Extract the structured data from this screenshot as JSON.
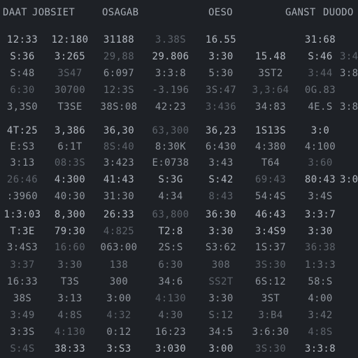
{
  "header": {
    "columns": [
      "DAAT",
      "JOBSIET",
      "OSAGAB",
      "",
      "OESO",
      "",
      "GANST",
      "DUODO"
    ]
  },
  "rows": [
    [
      "12:33",
      "12:180",
      "31188",
      "3.38S",
      "16.55",
      "",
      "31:68",
      ""
    ],
    [
      "S:36",
      "3:265",
      "29,88",
      "29.806",
      "3:30",
      "15.48",
      "S:46",
      "3:48"
    ],
    [
      "S:48",
      "3S47",
      "6:097",
      "3:3:8",
      "5:30",
      "3ST2",
      "3:44",
      "3:82"
    ],
    [
      "6:30",
      "30700",
      "12:3S",
      "-3.196",
      "3S:47",
      "3,3:64",
      "0G.83",
      ""
    ],
    [
      "3,3S0",
      "T3SE",
      "38S:08",
      "42:23",
      "3:436",
      "34:83",
      "4E.S",
      "3:8"
    ],
    [
      "4T:25",
      "3,386",
      "36,30",
      "63,300",
      "36,23",
      "1S13S",
      "3:0",
      ""
    ],
    [
      "E:S3",
      "6:1T",
      "8S:40",
      "8:30K",
      "6:430",
      "4:380",
      "4:100",
      ""
    ],
    [
      "3:13",
      "08:3S",
      "3:423",
      "E:0738",
      "3:43",
      "T64",
      "3:60",
      ""
    ],
    [
      "26:46",
      "4:300",
      "41:43",
      "S:3G",
      "S:42",
      "69:43",
      "80:43",
      "3:0"
    ],
    [
      ":3960",
      "40:30",
      "31:30",
      "4:34",
      "8:43",
      "54:4S",
      "3:4S",
      ""
    ],
    [
      "1:3:03",
      "8,300",
      "26:33",
      "63,800",
      "36:30",
      "46:43",
      "3:3:7",
      ""
    ],
    [
      "T:3E",
      "79:30",
      "4:825",
      "T2:8",
      "3:30",
      "3:4S9",
      "3:30",
      ""
    ],
    [
      "3:4S3",
      "16:60",
      "063:00",
      "2S:S",
      "S3:62",
      "1S:37",
      "36:38",
      ""
    ],
    [
      "3:37",
      "3:30",
      "138",
      "6:30",
      "308",
      "3S:30",
      "1:3:3",
      ""
    ],
    [
      "16:33",
      "T3S",
      "300",
      "34:6",
      "SS2T",
      "6S:12",
      "58:S",
      ""
    ],
    [
      "38S",
      "3:13",
      "3:00",
      "4:130",
      "3:30",
      "3ST",
      "4:00",
      ""
    ],
    [
      "3:49",
      "4:8S",
      "4:32",
      "4:30",
      "S:12",
      "3:B4",
      "3:42",
      ""
    ],
    [
      "3:3S",
      "4:130",
      "0:12",
      "16:23",
      "34:5",
      "3:6:30",
      "4:8S",
      ""
    ],
    [
      "S:4S",
      "38:33",
      "3:S3",
      "3:030",
      "3:00",
      "3S:30",
      "3:3:8",
      ""
    ]
  ]
}
